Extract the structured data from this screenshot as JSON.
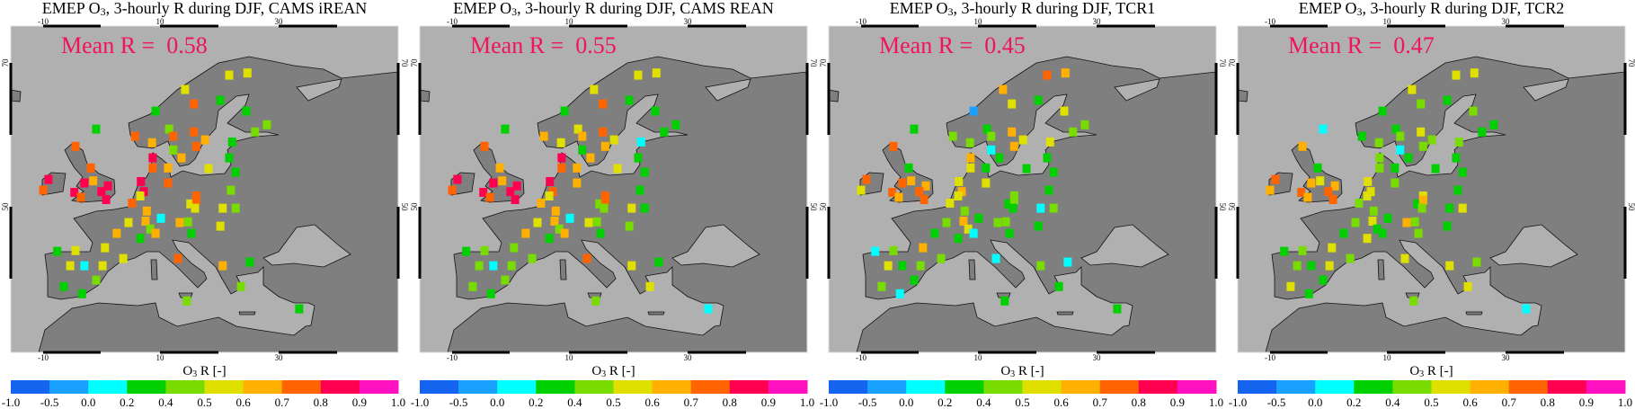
{
  "colorbar": {
    "label_prefix": "O",
    "label_sub": "3",
    "label_suffix": " R [-]",
    "edges": [
      -1.0,
      -0.5,
      0.0,
      0.2,
      0.4,
      0.5,
      0.6,
      0.7,
      0.8,
      0.9,
      1.0
    ],
    "tick_labels": [
      "-1.0",
      "-0.5",
      "0.0",
      "0.2",
      "0.4",
      "0.5",
      "0.6",
      "0.7",
      "0.8",
      "0.9",
      "1.0"
    ],
    "colors": [
      "#1464f0",
      "#1aa0ff",
      "#00ffff",
      "#00d000",
      "#78dc00",
      "#e0e000",
      "#ffb000",
      "#ff6400",
      "#ff0050",
      "#ff10c0"
    ]
  },
  "map": {
    "lon_ticks": [
      "-10",
      "10",
      "30"
    ],
    "lat_ticks": [
      "70",
      "50"
    ],
    "land_color": "#7f7f7f",
    "sea_color": "#b0b0b0",
    "mean_color": "#f0145a"
  },
  "stations": [
    [
      21.6,
      68.3
    ],
    [
      24.7,
      68.6
    ],
    [
      14.1,
      66.3
    ],
    [
      20.1,
      64.8
    ],
    [
      15.6,
      64.3
    ],
    [
      9.1,
      63.3
    ],
    [
      24.5,
      63.3
    ],
    [
      -1.0,
      60.8
    ],
    [
      28.0,
      61.4
    ],
    [
      26.0,
      60.4
    ],
    [
      5.6,
      59.8
    ],
    [
      11.4,
      60.8
    ],
    [
      12.1,
      59.8
    ],
    [
      15.6,
      60.4
    ],
    [
      17.5,
      59.3
    ],
    [
      16.0,
      58.4
    ],
    [
      8.5,
      58.9
    ],
    [
      22.1,
      59.0
    ],
    [
      12.1,
      57.9
    ],
    [
      13.5,
      56.8
    ],
    [
      8.6,
      56.8
    ],
    [
      8.6,
      55.4
    ],
    [
      11.2,
      55.4
    ],
    [
      18.1,
      55.3
    ],
    [
      21.6,
      56.8
    ],
    [
      22.7,
      54.8
    ],
    [
      -4.5,
      58.4
    ],
    [
      -1.9,
      55.4
    ],
    [
      -9.1,
      53.8
    ],
    [
      -10.0,
      52.3
    ],
    [
      -1.5,
      53.6
    ],
    [
      -3.0,
      53.3
    ],
    [
      1.0,
      52.9
    ],
    [
      -0.1,
      52.1
    ],
    [
      -4.7,
      52.0
    ],
    [
      -3.6,
      51.3
    ],
    [
      0.7,
      51.0
    ],
    [
      6.6,
      53.5
    ],
    [
      7.1,
      52.1
    ],
    [
      11.2,
      53.3
    ],
    [
      6.5,
      51.5
    ],
    [
      21.9,
      52.3
    ],
    [
      16.0,
      51.5
    ],
    [
      5.1,
      50.5
    ],
    [
      15.0,
      50.4
    ],
    [
      16.0,
      50.9
    ],
    [
      20.5,
      49.8
    ],
    [
      22.7,
      49.8
    ],
    [
      15.8,
      49.8
    ],
    [
      7.6,
      49.4
    ],
    [
      10.0,
      48.4
    ],
    [
      7.4,
      48.0
    ],
    [
      4.5,
      47.8
    ],
    [
      13.2,
      47.8
    ],
    [
      14.6,
      47.9
    ],
    [
      20.1,
      47.3
    ],
    [
      8.2,
      46.9
    ],
    [
      9.1,
      46.3
    ],
    [
      2.5,
      46.3
    ],
    [
      15.2,
      46.3
    ],
    [
      6.5,
      45.6
    ],
    [
      0.5,
      44.3
    ],
    [
      -7.6,
      43.8
    ],
    [
      -4.5,
      43.9
    ],
    [
      3.6,
      42.8
    ],
    [
      12.9,
      42.8
    ],
    [
      25.1,
      42.3
    ],
    [
      -5.4,
      41.8
    ],
    [
      -3.0,
      41.8
    ],
    [
      0.1,
      41.8
    ],
    [
      20.5,
      41.8
    ],
    [
      -1.0,
      39.8
    ],
    [
      23.6,
      38.9
    ],
    [
      -6.5,
      38.9
    ],
    [
      -3.4,
      37.9
    ],
    [
      14.4,
      36.9
    ],
    [
      33.5,
      35.8
    ]
  ],
  "panels": [
    {
      "title_prefix": "EMEP O",
      "title_sub": "3",
      "title_suffix": ", 3-hourly R during DJF, CAMS iREAN",
      "mean_label": "Mean R =  ",
      "mean_value": "0.58",
      "values": [
        0.55,
        0.55,
        0.55,
        0.3,
        0.75,
        0.3,
        0.3,
        0.3,
        0.45,
        0.45,
        0.75,
        0.45,
        0.75,
        0.75,
        0.65,
        0.75,
        0.65,
        0.3,
        0.45,
        0.65,
        0.85,
        0.75,
        0.65,
        0.55,
        0.3,
        0.3,
        0.75,
        0.75,
        0.85,
        0.75,
        0.65,
        0.85,
        0.85,
        0.85,
        0.85,
        0.75,
        0.85,
        0.85,
        0.85,
        0.75,
        0.55,
        0.45,
        0.75,
        0.75,
        0.55,
        0.75,
        0.55,
        0.45,
        0.55,
        0.65,
        0.1,
        0.65,
        0.55,
        0.65,
        0.45,
        0.55,
        0.45,
        0.65,
        0.65,
        0.3,
        0.3,
        0.55,
        0.3,
        0.55,
        0.55,
        0.75,
        0.3,
        0.55,
        0.1,
        0.55,
        0.65,
        0.45,
        0.45,
        0.3,
        0.3,
        0.45,
        0.3
      ]
    },
    {
      "title_prefix": "EMEP O",
      "title_sub": "3",
      "title_suffix": ", 3-hourly R during DJF, CAMS REAN",
      "mean_label": "Mean R =  ",
      "mean_value": "0.55",
      "values": [
        0.55,
        0.55,
        0.55,
        0.3,
        0.75,
        0.3,
        0.3,
        0.3,
        0.3,
        0.3,
        0.65,
        0.55,
        0.65,
        0.75,
        0.55,
        0.65,
        0.55,
        0.1,
        0.3,
        0.65,
        0.85,
        0.75,
        0.65,
        0.55,
        0.3,
        0.3,
        0.75,
        0.65,
        0.85,
        0.75,
        0.65,
        0.85,
        0.85,
        0.85,
        0.85,
        0.75,
        0.85,
        0.85,
        0.75,
        0.65,
        0.55,
        0.3,
        0.75,
        0.65,
        0.45,
        0.75,
        0.55,
        0.3,
        0.45,
        0.65,
        0.1,
        0.65,
        0.55,
        0.55,
        0.45,
        0.45,
        0.45,
        0.65,
        0.65,
        0.3,
        0.3,
        0.45,
        0.3,
        0.45,
        0.45,
        0.75,
        0.3,
        0.45,
        0.1,
        0.45,
        0.55,
        0.45,
        0.55,
        0.45,
        0.3,
        0.45,
        0.1
      ]
    },
    {
      "title_prefix": "EMEP O",
      "title_sub": "3",
      "title_suffix": ", 3-hourly R during DJF, TCR1",
      "mean_label": "Mean R =  ",
      "mean_value": "0.45",
      "values": [
        0.75,
        0.65,
        0.65,
        0.3,
        0.55,
        -0.25,
        0.55,
        0.3,
        0.45,
        0.45,
        0.45,
        0.3,
        0.45,
        0.65,
        0.55,
        0.65,
        0.45,
        0.55,
        0.1,
        0.3,
        0.65,
        0.55,
        0.3,
        0.3,
        0.3,
        0.3,
        0.75,
        0.3,
        0.75,
        0.55,
        0.65,
        0.75,
        0.65,
        0.75,
        0.75,
        0.65,
        0.75,
        0.55,
        0.65,
        0.55,
        0.55,
        0.3,
        0.45,
        0.55,
        0.3,
        0.45,
        0.1,
        0.45,
        0.3,
        0.45,
        0.3,
        0.65,
        0.45,
        0.45,
        0.45,
        0.3,
        0.55,
        0.1,
        0.3,
        0.3,
        0.3,
        0.65,
        0.1,
        0.45,
        0.45,
        0.1,
        0.1,
        0.55,
        0.3,
        0.45,
        0.45,
        0.3,
        0.3,
        0.45,
        0.1,
        0.3,
        0.3
      ]
    },
    {
      "title_prefix": "EMEP O",
      "title_sub": "3",
      "title_suffix": ", 3-hourly R during DJF, TCR2",
      "mean_label": "Mean R =  ",
      "mean_value": "0.47",
      "values": [
        0.55,
        0.55,
        0.55,
        0.3,
        0.45,
        0.3,
        0.45,
        0.1,
        0.3,
        0.3,
        0.3,
        0.3,
        0.45,
        0.55,
        0.45,
        0.45,
        0.45,
        0.45,
        0.1,
        0.3,
        0.45,
        0.45,
        0.3,
        0.3,
        0.3,
        0.3,
        0.65,
        0.3,
        0.75,
        0.65,
        0.55,
        0.65,
        0.65,
        0.75,
        0.75,
        0.65,
        0.75,
        0.55,
        0.55,
        0.45,
        0.55,
        0.3,
        0.55,
        0.45,
        0.3,
        0.65,
        0.3,
        0.55,
        0.45,
        0.45,
        0.3,
        0.55,
        0.45,
        0.65,
        0.45,
        0.3,
        0.3,
        0.3,
        0.3,
        0.45,
        0.55,
        0.55,
        0.3,
        0.45,
        0.45,
        0.55,
        0.45,
        0.45,
        0.3,
        0.55,
        0.55,
        0.3,
        0.55,
        0.55,
        0.3,
        0.45,
        0.1
      ]
    }
  ]
}
